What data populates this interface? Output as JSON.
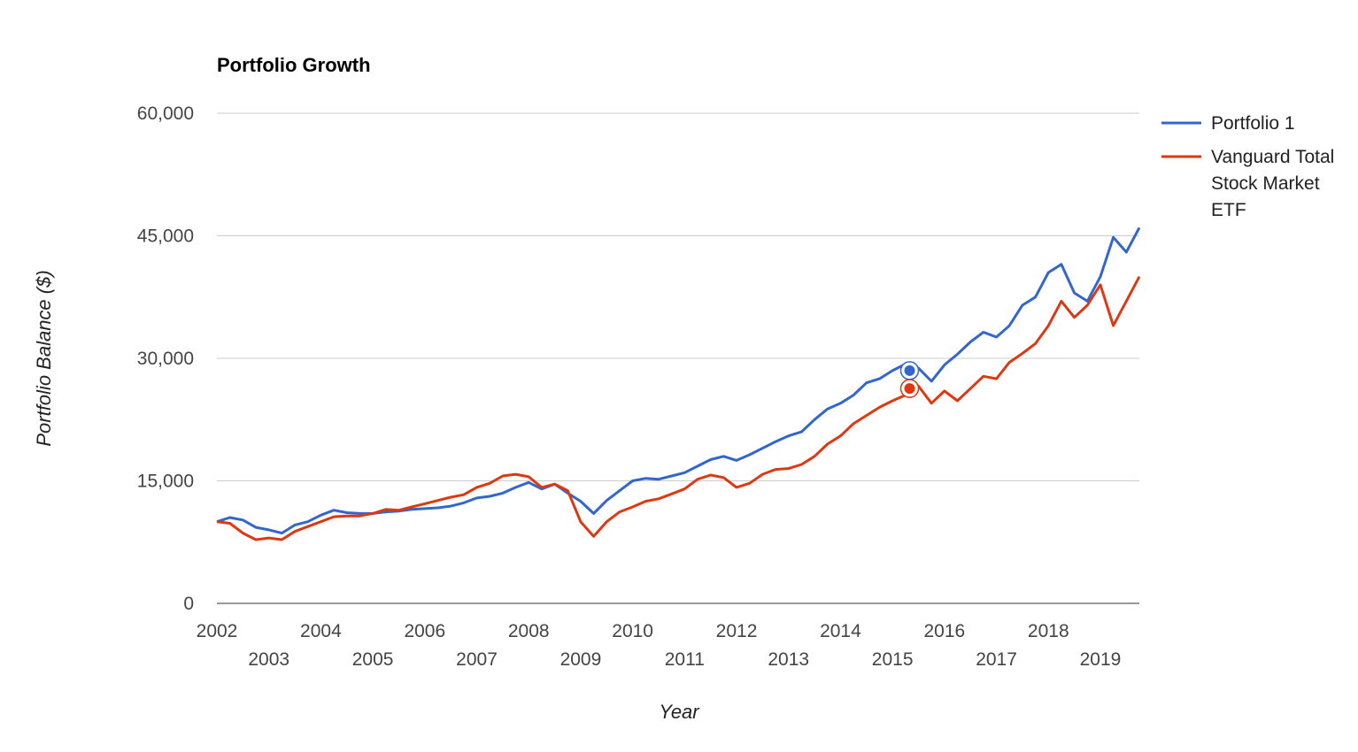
{
  "chart_data": {
    "type": "line",
    "title": "Portfolio Growth",
    "xlabel": "Year",
    "ylabel": "Portfolio Balance ($)",
    "ylim": [
      0,
      60000
    ],
    "xlim": [
      2002.0,
      2019.75
    ],
    "y_ticks": [
      0,
      15000,
      30000,
      45000,
      60000
    ],
    "y_tick_labels": [
      "0",
      "15,000",
      "30,000",
      "45,000",
      "60,000"
    ],
    "x_ticks": [
      2002,
      2003,
      2004,
      2005,
      2006,
      2007,
      2008,
      2009,
      2010,
      2011,
      2012,
      2013,
      2014,
      2015,
      2016,
      2017,
      2018,
      2019
    ],
    "x_tick_labels": [
      "2002",
      "2003",
      "2004",
      "2005",
      "2006",
      "2007",
      "2008",
      "2009",
      "2010",
      "2011",
      "2012",
      "2013",
      "2014",
      "2015",
      "2016",
      "2017",
      "2018",
      "2019"
    ],
    "grid": true,
    "legend_position": "right",
    "highlighted_x": 2015.33,
    "series": [
      {
        "name": "Portfolio 1",
        "color": "#3366cc",
        "x": [
          2002.0,
          2002.25,
          2002.5,
          2002.75,
          2003.0,
          2003.25,
          2003.5,
          2003.75,
          2004.0,
          2004.25,
          2004.5,
          2004.75,
          2005.0,
          2005.25,
          2005.5,
          2005.75,
          2006.0,
          2006.25,
          2006.5,
          2006.75,
          2007.0,
          2007.25,
          2007.5,
          2007.75,
          2008.0,
          2008.25,
          2008.5,
          2008.75,
          2009.0,
          2009.25,
          2009.5,
          2009.75,
          2010.0,
          2010.25,
          2010.5,
          2010.75,
          2011.0,
          2011.25,
          2011.5,
          2011.75,
          2012.0,
          2012.25,
          2012.5,
          2012.75,
          2013.0,
          2013.25,
          2013.5,
          2013.75,
          2014.0,
          2014.25,
          2014.5,
          2014.75,
          2015.0,
          2015.25,
          2015.33,
          2015.5,
          2015.75,
          2016.0,
          2016.25,
          2016.5,
          2016.75,
          2017.0,
          2017.25,
          2017.5,
          2017.75,
          2018.0,
          2018.25,
          2018.5,
          2018.75,
          2019.0,
          2019.25,
          2019.5,
          2019.75
        ],
        "values": [
          10000,
          10500,
          10200,
          9300,
          9000,
          8600,
          9600,
          10000,
          10800,
          11400,
          11100,
          11000,
          11000,
          11200,
          11300,
          11500,
          11600,
          11700,
          11900,
          12300,
          12900,
          13100,
          13500,
          14200,
          14800,
          14000,
          14600,
          13500,
          12500,
          11000,
          12600,
          13800,
          15000,
          15300,
          15200,
          15600,
          16000,
          16800,
          17600,
          18000,
          17500,
          18200,
          19000,
          19800,
          20500,
          21000,
          22500,
          23800,
          24500,
          25500,
          27000,
          27500,
          28500,
          29300,
          28500,
          28800,
          27200,
          29200,
          30500,
          32000,
          33200,
          32600,
          34000,
          36500,
          37500,
          40500,
          41500,
          38000,
          37000,
          40000,
          44800,
          43000,
          46000
        ]
      },
      {
        "name": "Vanguard Total Stock Market ETF",
        "color": "#dc3912",
        "x": [
          2002.0,
          2002.25,
          2002.5,
          2002.75,
          2003.0,
          2003.25,
          2003.5,
          2003.75,
          2004.0,
          2004.25,
          2004.5,
          2004.75,
          2005.0,
          2005.25,
          2005.5,
          2005.75,
          2006.0,
          2006.25,
          2006.5,
          2006.75,
          2007.0,
          2007.25,
          2007.5,
          2007.75,
          2008.0,
          2008.25,
          2008.5,
          2008.75,
          2009.0,
          2009.25,
          2009.5,
          2009.75,
          2010.0,
          2010.25,
          2010.5,
          2010.75,
          2011.0,
          2011.25,
          2011.5,
          2011.75,
          2012.0,
          2012.25,
          2012.5,
          2012.75,
          2013.0,
          2013.25,
          2013.5,
          2013.75,
          2014.0,
          2014.25,
          2014.5,
          2014.75,
          2015.0,
          2015.25,
          2015.33,
          2015.5,
          2015.75,
          2016.0,
          2016.25,
          2016.5,
          2016.75,
          2017.0,
          2017.25,
          2017.5,
          2017.75,
          2018.0,
          2018.25,
          2018.5,
          2018.75,
          2019.0,
          2019.25,
          2019.5,
          2019.75
        ],
        "values": [
          10000,
          9800,
          8600,
          7800,
          8000,
          7800,
          8800,
          9400,
          10000,
          10600,
          10700,
          10700,
          11000,
          11500,
          11400,
          11800,
          12200,
          12600,
          13000,
          13300,
          14200,
          14700,
          15600,
          15800,
          15500,
          14200,
          14600,
          13800,
          10000,
          8200,
          10000,
          11200,
          11800,
          12500,
          12800,
          13400,
          14000,
          15200,
          15700,
          15400,
          14200,
          14700,
          15800,
          16400,
          16500,
          17000,
          18000,
          19500,
          20500,
          22000,
          23000,
          24000,
          24800,
          25500,
          26300,
          26600,
          24500,
          26000,
          24800,
          26300,
          27800,
          27500,
          29500,
          30600,
          31800,
          34000,
          37000,
          35000,
          36500,
          39000,
          34000,
          37000,
          40000
        ]
      }
    ]
  }
}
